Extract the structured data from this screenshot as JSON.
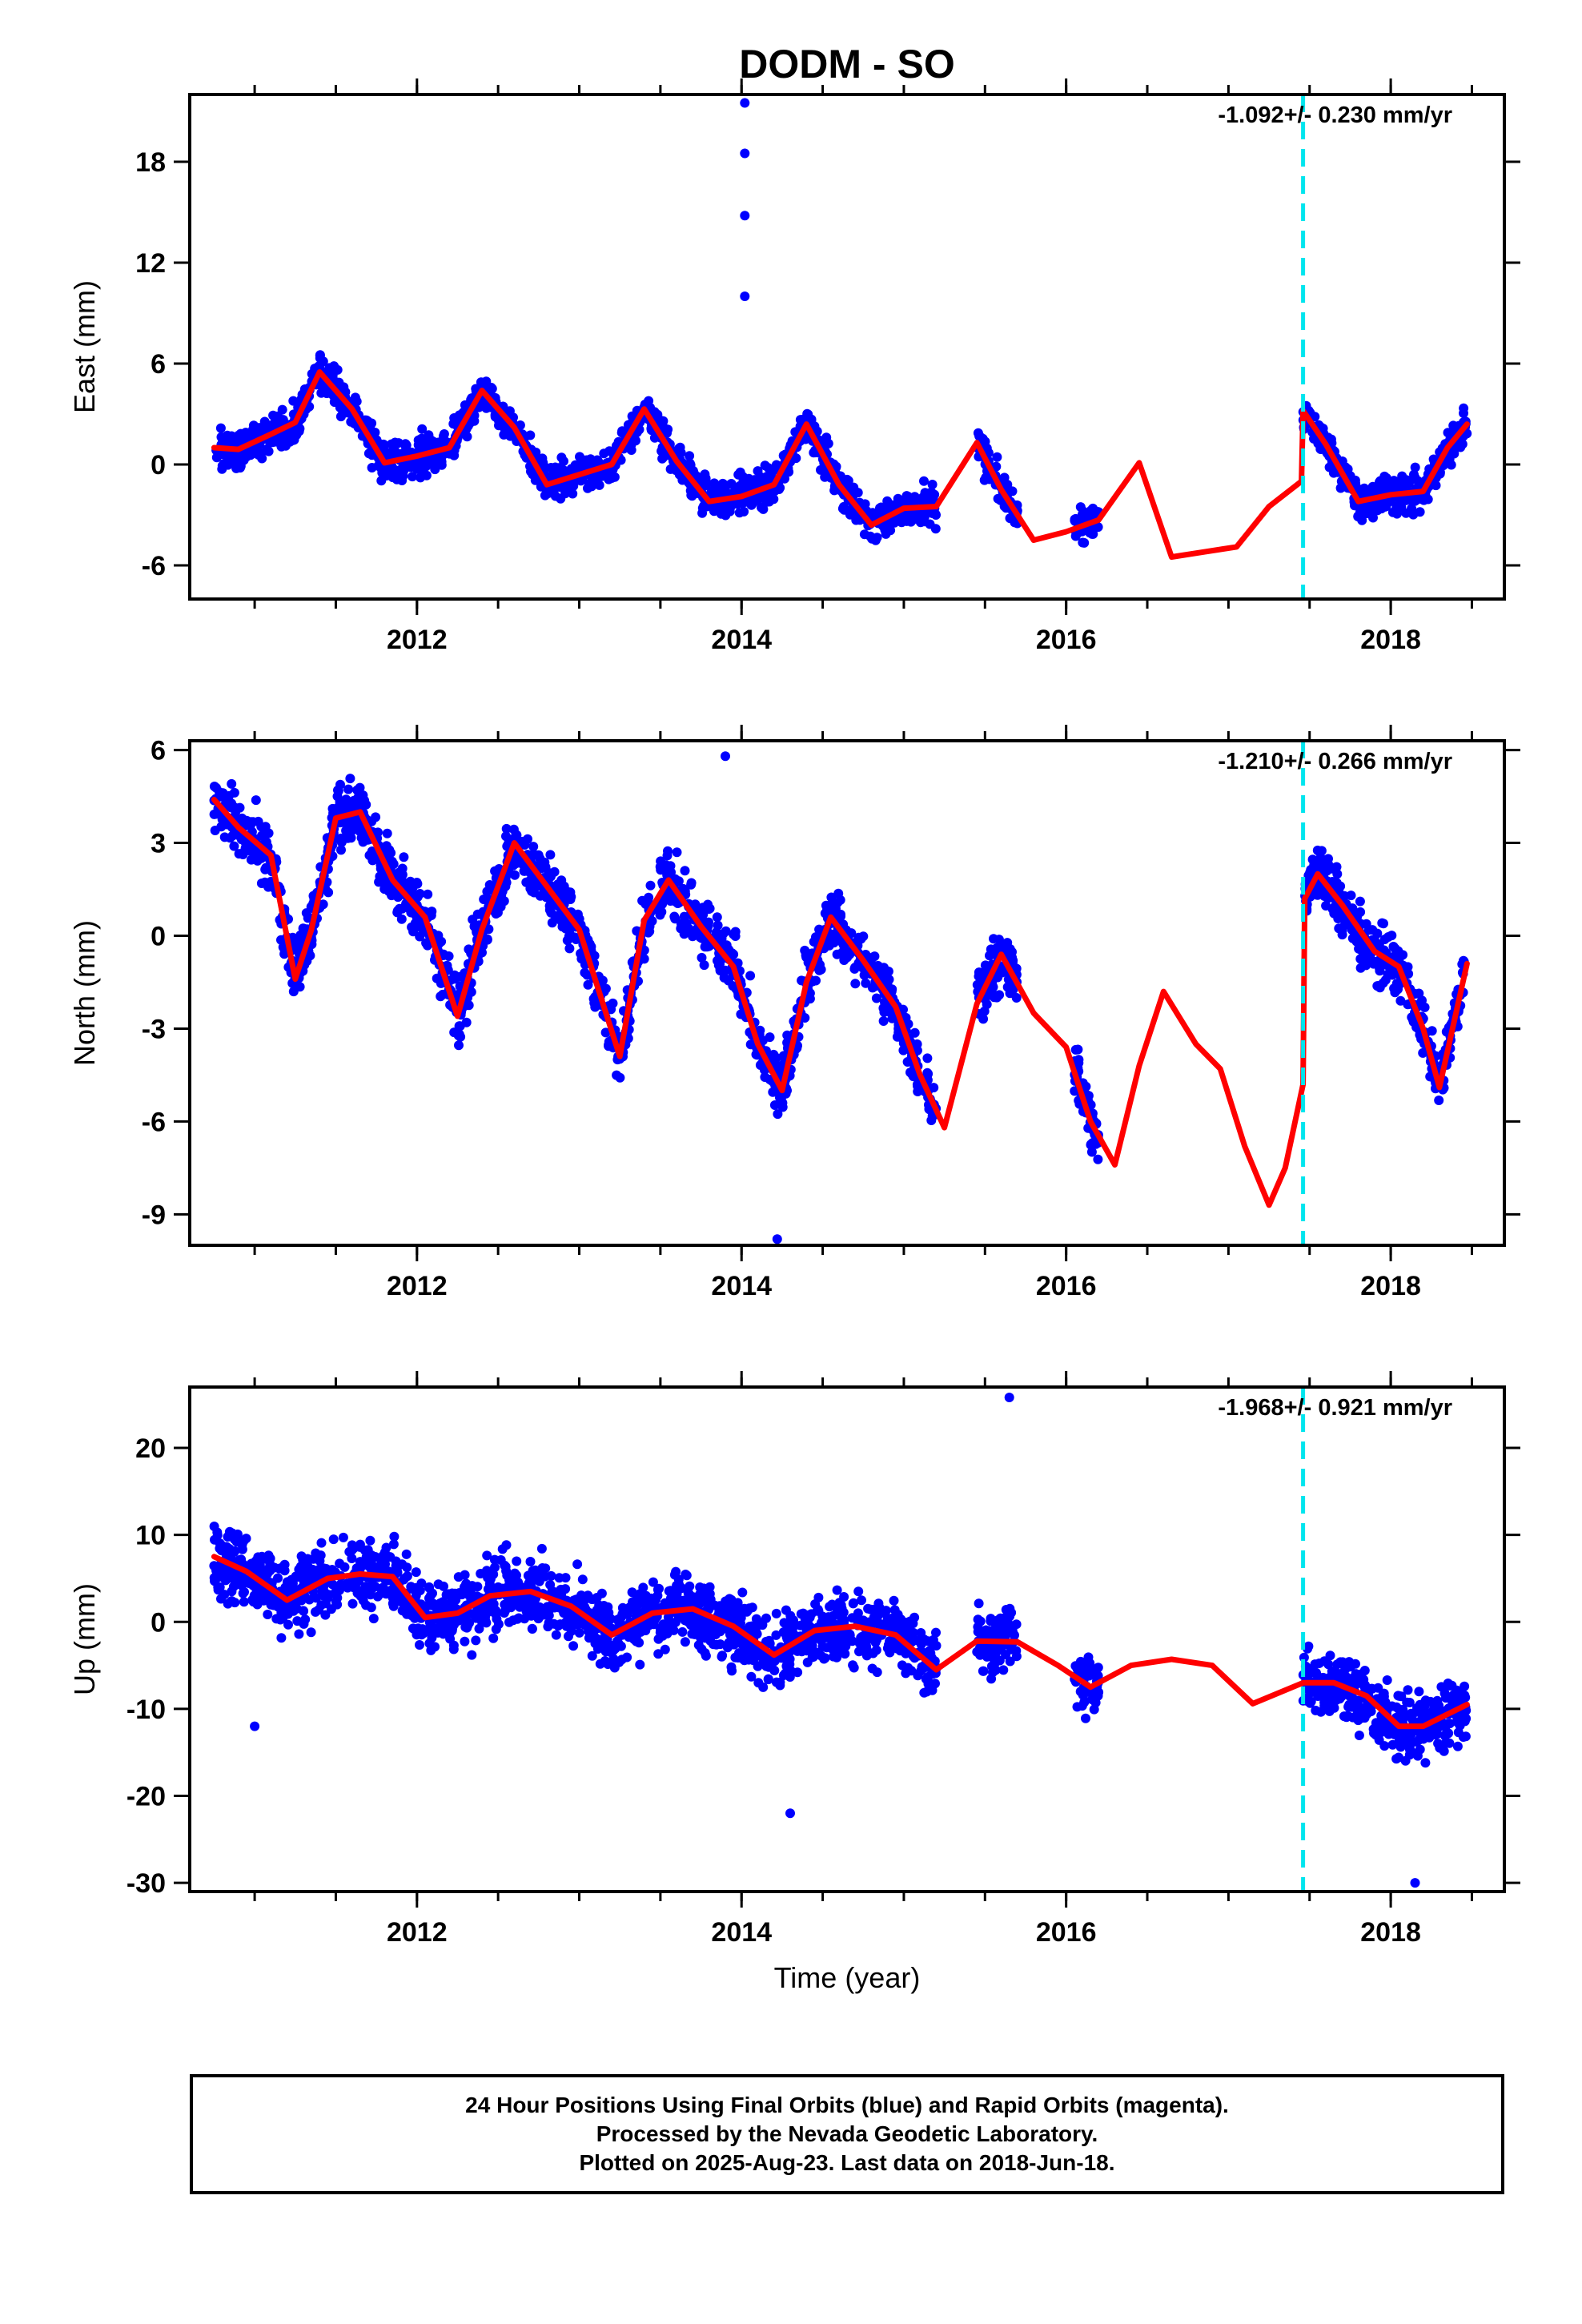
{
  "title": "DODM - SO",
  "xlabel": "Time (year)",
  "colors": {
    "final_orbits": "#0000ff",
    "fit": "#ff0000",
    "event": "#00e5ee"
  },
  "footer": {
    "line1": "24 Hour Positions Using Final Orbits (blue) and Rapid Orbits (magenta).",
    "line2": "Processed by the Nevada Geodetic Laboratory.",
    "line3": "Plotted on 2025-Aug-23. Last data on 2018-Jun-18."
  },
  "chart_data": [
    {
      "type": "scatter",
      "ylabel": "East (mm)",
      "rate": "-1.092+/- 0.230 mm/yr",
      "xlim": [
        2010.6,
        2018.7
      ],
      "ylim": [
        -8,
        22
      ],
      "xticks": [
        2012,
        2014,
        2016,
        2018
      ],
      "yticks": [
        -6,
        0,
        6,
        12,
        18
      ],
      "event_line_x": 2017.46,
      "data_segments": [
        [
          2010.75,
          2015.2
        ],
        [
          2015.45,
          2015.7
        ],
        [
          2016.05,
          2016.2
        ],
        [
          2017.46,
          2018.47
        ]
      ],
      "fit_curve": {
        "x": [
          2010.75,
          2010.9,
          2011.1,
          2011.25,
          2011.4,
          2011.6,
          2011.8,
          2012.0,
          2012.2,
          2012.4,
          2012.6,
          2012.8,
          2013.0,
          2013.2,
          2013.4,
          2013.6,
          2013.8,
          2014.0,
          2014.2,
          2014.4,
          2014.6,
          2014.8,
          2015.0,
          2015.2,
          2015.45,
          2015.6,
          2015.8,
          2016.0,
          2016.2,
          2016.45,
          2016.65,
          2016.85,
          2017.05,
          2017.25,
          2017.45,
          2017.46,
          2017.6,
          2017.8,
          2018.0,
          2018.2,
          2018.35,
          2018.47
        ],
        "y": [
          1.0,
          0.9,
          1.8,
          2.5,
          5.5,
          3.3,
          0.1,
          0.5,
          1.0,
          4.4,
          2.2,
          -1.2,
          -0.6,
          0.0,
          3.3,
          0.2,
          -2.2,
          -1.9,
          -1.2,
          2.4,
          -1.2,
          -3.6,
          -2.6,
          -2.5,
          1.3,
          -1.5,
          -4.5,
          -4.0,
          -3.3,
          0.1,
          -5.5,
          -5.2,
          -4.9,
          -2.5,
          -1.0,
          3.2,
          1.2,
          -2.2,
          -1.8,
          -1.6,
          1.0,
          2.4
        ]
      },
      "outliers": [
        {
          "x": 2014.02,
          "y": 21.5
        },
        {
          "x": 2014.02,
          "y": 18.5
        },
        {
          "x": 2014.02,
          "y": 14.8
        },
        {
          "x": 2014.02,
          "y": 10.0
        }
      ]
    },
    {
      "type": "scatter",
      "ylabel": "North (mm)",
      "rate": "-1.210+/- 0.266 mm/yr",
      "xlim": [
        2010.6,
        2018.7
      ],
      "ylim": [
        -10,
        6.3
      ],
      "xticks": [
        2012,
        2014,
        2016,
        2018
      ],
      "yticks": [
        -9,
        -6,
        -3,
        0,
        3,
        6
      ],
      "event_line_x": 2017.46,
      "data_segments": [
        [
          2010.75,
          2015.2
        ],
        [
          2015.45,
          2015.7
        ],
        [
          2016.05,
          2016.2
        ],
        [
          2017.46,
          2018.47
        ]
      ],
      "fit_curve": {
        "x": [
          2010.75,
          2010.9,
          2011.1,
          2011.25,
          2011.35,
          2011.5,
          2011.65,
          2011.85,
          2012.05,
          2012.25,
          2012.4,
          2012.6,
          2012.8,
          2013.0,
          2013.25,
          2013.4,
          2013.55,
          2013.75,
          2013.95,
          2014.1,
          2014.25,
          2014.4,
          2014.55,
          2014.75,
          2014.95,
          2015.1,
          2015.25,
          2015.45,
          2015.6,
          2015.8,
          2016.0,
          2016.15,
          2016.3,
          2016.45,
          2016.6,
          2016.8,
          2016.95,
          2017.1,
          2017.25,
          2017.35,
          2017.46,
          2017.47,
          2017.55,
          2017.7,
          2017.9,
          2018.05,
          2018.2,
          2018.3,
          2018.47
        ],
        "y": [
          4.4,
          3.5,
          2.6,
          -1.4,
          0.2,
          3.8,
          4.0,
          1.8,
          0.6,
          -2.6,
          0.2,
          3.0,
          1.6,
          0.2,
          -3.9,
          0.5,
          1.8,
          0.3,
          -1.0,
          -3.5,
          -5.0,
          -1.5,
          0.6,
          -0.8,
          -2.3,
          -4.5,
          -6.2,
          -2.2,
          -0.6,
          -2.5,
          -3.6,
          -6.0,
          -7.4,
          -4.2,
          -1.8,
          -3.5,
          -4.3,
          -6.8,
          -8.7,
          -7.5,
          -4.8,
          1.2,
          2.0,
          1.0,
          -0.5,
          -1.0,
          -3.0,
          -4.9,
          -0.9
        ]
      },
      "outliers": [
        {
          "x": 2013.9,
          "y": 5.8
        },
        {
          "x": 2014.22,
          "y": -9.8
        }
      ]
    },
    {
      "type": "scatter",
      "ylabel": "Up (mm)",
      "rate": "-1.968+/- 0.921 mm/yr",
      "xlim": [
        2010.6,
        2018.7
      ],
      "ylim": [
        -31,
        27
      ],
      "xticks": [
        2012,
        2014,
        2016,
        2018
      ],
      "yticks": [
        -30,
        -20,
        -10,
        0,
        10,
        20
      ],
      "event_line_x": 2017.46,
      "data_segments": [
        [
          2010.75,
          2015.2
        ],
        [
          2015.45,
          2015.7
        ],
        [
          2016.05,
          2016.2
        ],
        [
          2017.46,
          2018.47
        ]
      ],
      "fit_curve": {
        "x": [
          2010.75,
          2010.95,
          2011.2,
          2011.45,
          2011.65,
          2011.85,
          2012.05,
          2012.25,
          2012.45,
          2012.7,
          2012.95,
          2013.2,
          2013.45,
          2013.7,
          2013.95,
          2014.2,
          2014.45,
          2014.7,
          2014.95,
          2015.2,
          2015.45,
          2015.7,
          2015.95,
          2016.15,
          2016.4,
          2016.65,
          2016.9,
          2017.15,
          2017.46,
          2017.65,
          2017.85,
          2018.05,
          2018.2,
          2018.47
        ],
        "y": [
          7.5,
          5.8,
          2.5,
          5.0,
          5.5,
          5.2,
          0.5,
          1.0,
          3.0,
          3.5,
          1.8,
          -1.5,
          1.0,
          1.5,
          -0.5,
          -3.8,
          -1.0,
          -0.5,
          -1.5,
          -5.5,
          -2.2,
          -2.3,
          -5.0,
          -7.5,
          -5.0,
          -4.3,
          -5.0,
          -9.4,
          -7.0,
          -7.0,
          -8.5,
          -12.0,
          -12.0,
          -9.5
        ]
      },
      "outliers": [
        {
          "x": 2015.65,
          "y": 25.8
        },
        {
          "x": 2011.0,
          "y": -12.0
        },
        {
          "x": 2014.3,
          "y": -22.0
        },
        {
          "x": 2018.15,
          "y": -30.0
        }
      ]
    }
  ]
}
